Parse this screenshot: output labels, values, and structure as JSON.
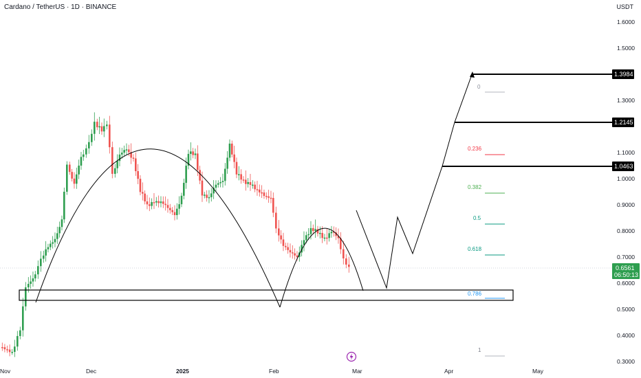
{
  "header": {
    "symbol": "Cardano / TetherUS · 1D · BINANCE",
    "currency": "USDT"
  },
  "colors": {
    "up": "#22ab94",
    "up_body": "#26a69a",
    "down": "#ef5350",
    "candle_up": "#2e9e4f",
    "line": "#000000",
    "price_tag": "#2e9e4f",
    "fib_0": "#8a8e99",
    "fib_0236": "#f23645",
    "fib_0382": "#4caf50",
    "fib_05": "#089981",
    "fib_0618": "#089981",
    "fib_0786": "#2196f3",
    "fib_1": "#787b86"
  },
  "price_axis": {
    "ticks": [
      "1.6000",
      "1.5000",
      "1.4000",
      "1.3000",
      "1.2000",
      "1.1000",
      "1.0000",
      "0.9000",
      "0.8000",
      "0.7000",
      "0.6000",
      "0.5000",
      "0.4000",
      "0.3000"
    ]
  },
  "time_axis": {
    "ticks": [
      "Nov",
      "Dec",
      "2025",
      "Feb",
      "Mar",
      "Apr",
      "May"
    ]
  },
  "price_tags": {
    "level_1": "1.3984",
    "level_2": "1.2145",
    "level_3": "1.0463",
    "current_price": "0.6561",
    "countdown": "06:50:13"
  },
  "fib_levels": [
    "0",
    "0.236",
    "0.382",
    "0.5",
    "0.618",
    "0.786",
    "1"
  ],
  "icons": {
    "event_marker": "lightning-icon"
  }
}
